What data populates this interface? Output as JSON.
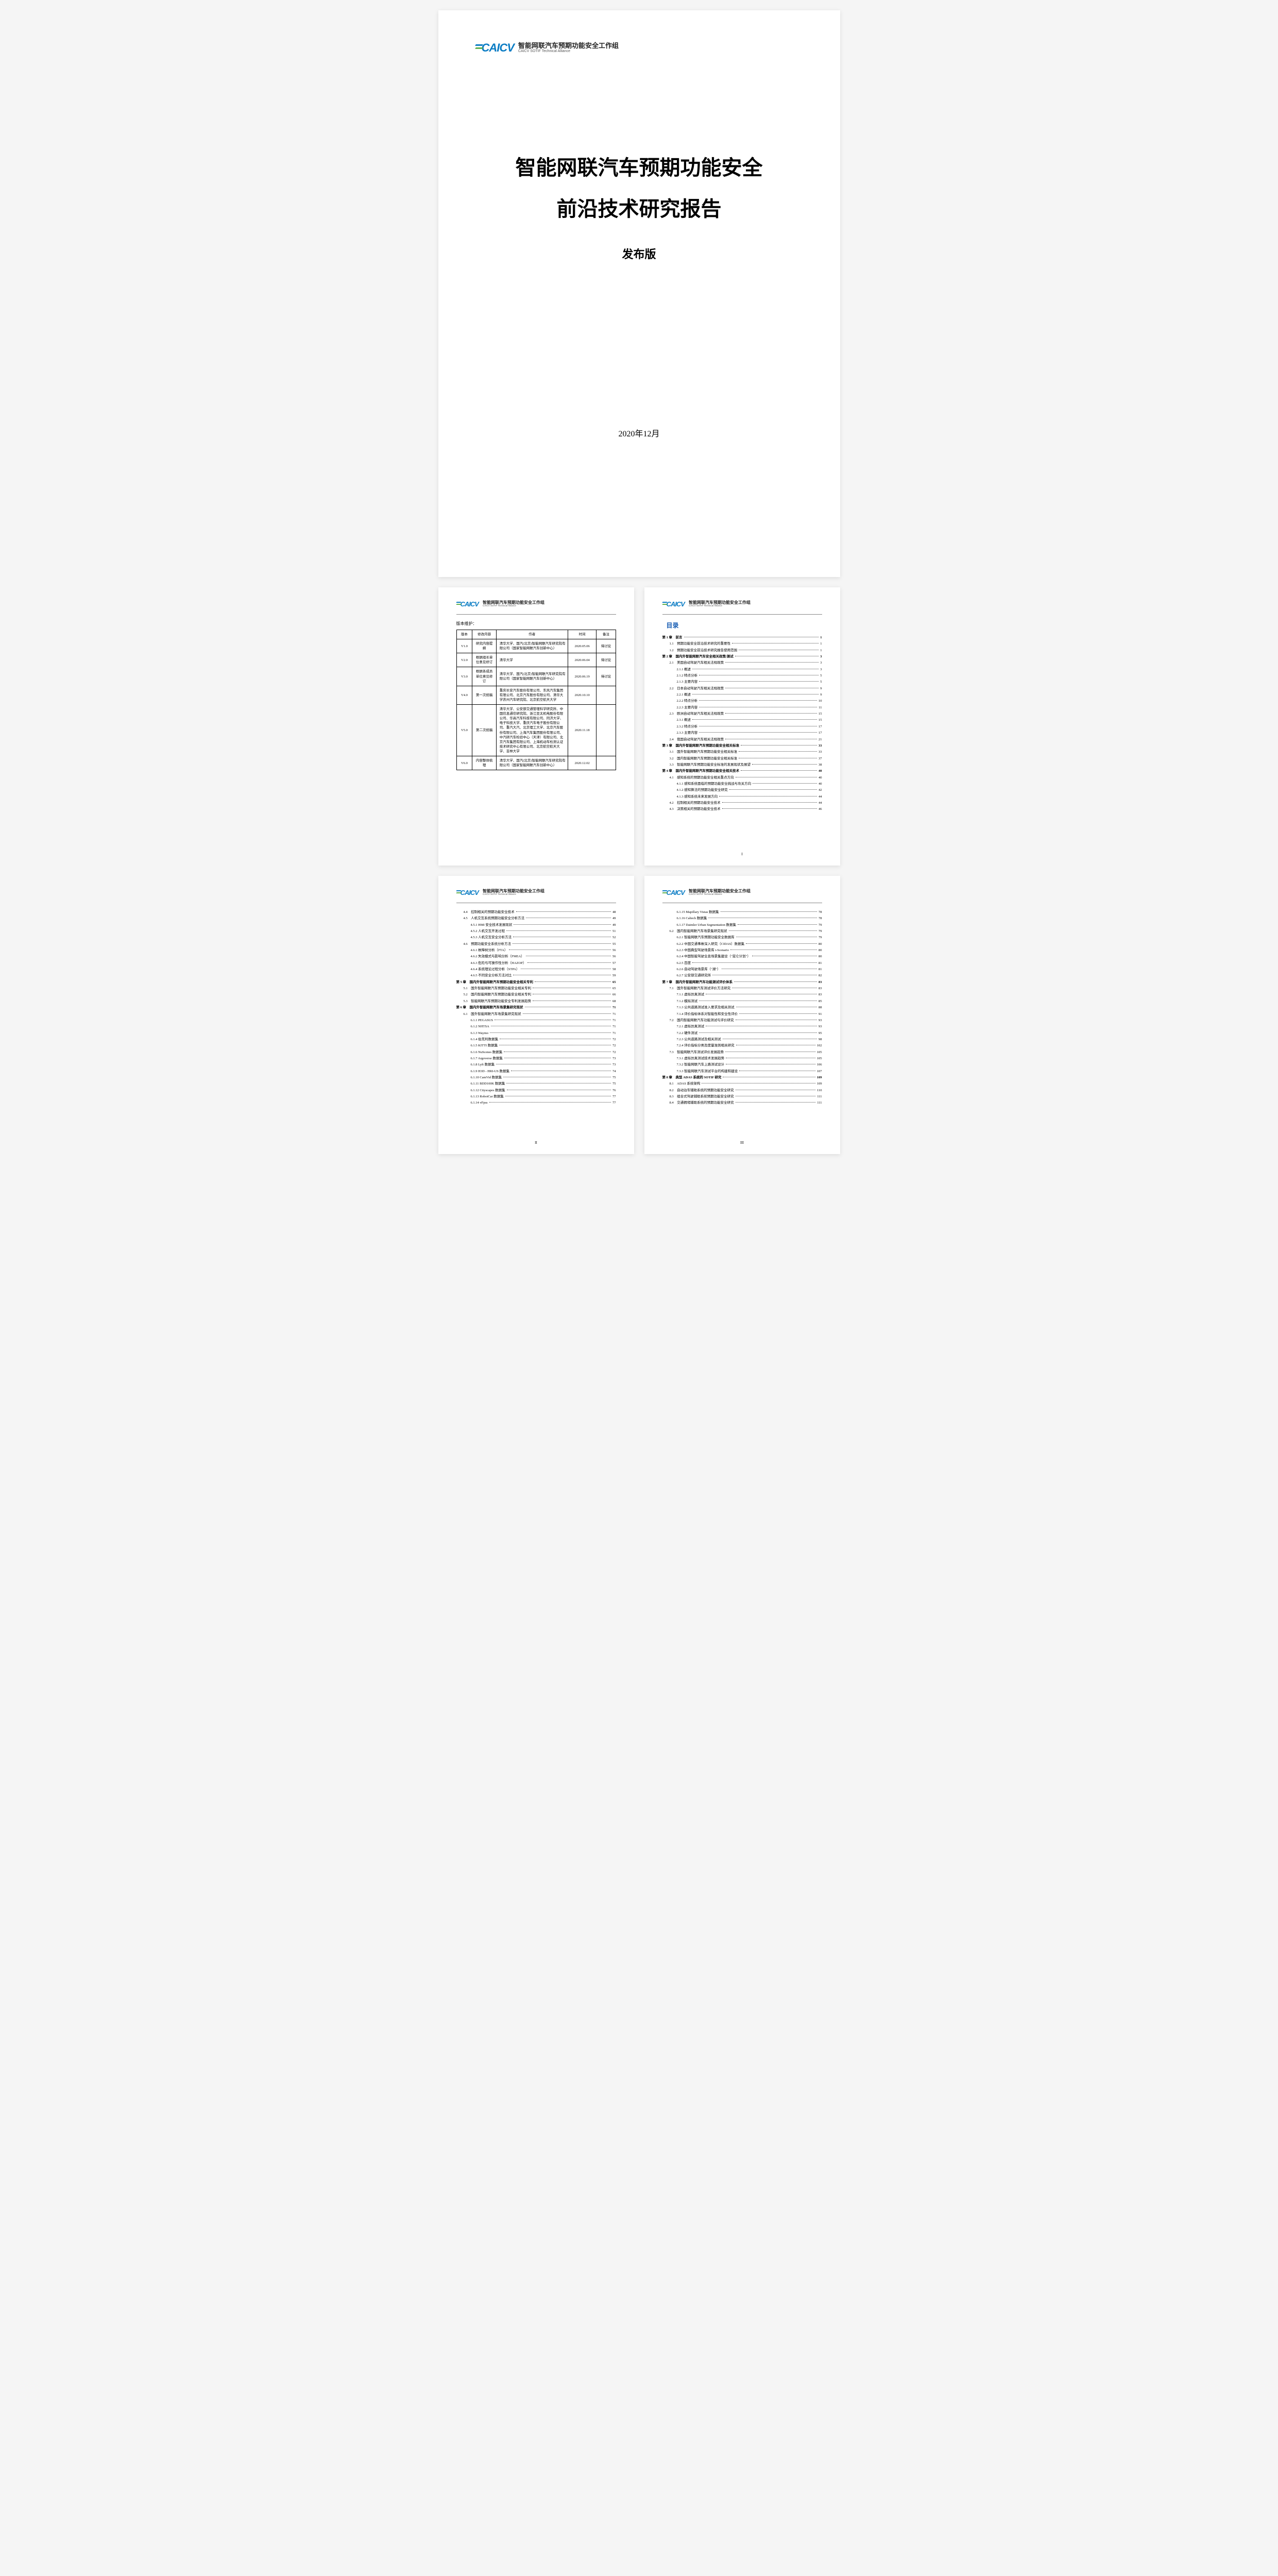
{
  "logo": {
    "mark": "CAICV",
    "cn": "智能网联汽车预期功能安全工作组",
    "en": "CAICV SOTIF Technical Alliance"
  },
  "cover": {
    "title_line1": "智能网联汽车预期功能安全",
    "title_line2": "前沿技术研究报告",
    "edition": "发布版",
    "date": "2020年12月"
  },
  "version": {
    "label": "版本维护：",
    "headers": [
      "版本",
      "修改内容",
      "作者",
      "时间",
      "备注"
    ],
    "rows": [
      {
        "v": "V1.0",
        "c": "研究内容提纲",
        "a": "清华大学、国汽(北京)智能网联汽车研究院有限公司（国家智能网联汽车创新中心）",
        "t": "2020.05.06",
        "n": "待讨论"
      },
      {
        "v": "V2.0",
        "c": "根据组长单位意见修订",
        "a": "清华大学",
        "t": "2020.06.04",
        "n": "待讨论"
      },
      {
        "v": "V3.0",
        "c": "根据各成员单位意见修订",
        "a": "清华大学、国汽(北京)智能网联汽车研究院有限公司（国家智能网联汽车创新中心）",
        "t": "2020.06.19",
        "n": "待讨论"
      },
      {
        "v": "V4.0",
        "c": "第一次统稿",
        "a": "重庆长安汽车股份有限公司、东风汽车集团有限公司、北京汽车股份有限公司、清华大学苏州汽车研究院、北京航空航天大学",
        "t": "2020.10.10",
        "n": ""
      },
      {
        "v": "V5.0",
        "c": "第二次统稿",
        "a": "清华大学、公安部交通管理科学研究所、中国信息通信研究院、浙江亚太机电股份有限公司、华高汽车科技有限公司、同济大学、电子科技大学、重庆汽车电子股份有限公司、重汽大汽、北京理工大学、北京汽车股份有限公司、上海汽车集团股份有限公司、中汽研汽车检验中心（天津）有限公司、北京汽车集团有限公司、上海机动车检测认证技术研究中心有限公司、北京航空航天大学、吉林大学",
        "t": "2020.11.18",
        "n": ""
      },
      {
        "v": "V6.0",
        "c": "内容整体梳理",
        "a": "清华大学、国汽(北京)智能网联汽车研究院有限公司（国家智能网联汽车创新中心）",
        "t": "2020.12.02",
        "n": ""
      }
    ]
  },
  "toc_title": "目录",
  "toc_p1": [
    {
      "l": 1,
      "t": "第 1 章　前言",
      "p": "1"
    },
    {
      "l": 2,
      "t": "1.1　预期功能安全前沿技术研究的重要性",
      "p": "1"
    },
    {
      "l": 2,
      "t": "1.2　预期功能安全前沿技术研究报告使用范围",
      "p": "1"
    },
    {
      "l": 1,
      "t": "第 2 章　国内外智能网联汽车安全相关政策/测试",
      "p": "3"
    },
    {
      "l": 2,
      "t": "2.1　美国自动驾驶汽车相关法规政策",
      "p": "3"
    },
    {
      "l": 3,
      "t": "2.1.1 概述",
      "p": "3"
    },
    {
      "l": 3,
      "t": "2.1.2 特点分析",
      "p": "5"
    },
    {
      "l": 3,
      "t": "2.1.3 主要内容",
      "p": "5"
    },
    {
      "l": 2,
      "t": "2.2　日本自动驾驶汽车相关法规政策",
      "p": "9"
    },
    {
      "l": 3,
      "t": "2.2.1 概述",
      "p": "9"
    },
    {
      "l": 3,
      "t": "2.2.2 特点分析",
      "p": "10"
    },
    {
      "l": 3,
      "t": "2.2.3 主要内容",
      "p": "11"
    },
    {
      "l": 2,
      "t": "2.3　欧洲自动驾驶汽车相关法规政策",
      "p": "15"
    },
    {
      "l": 3,
      "t": "2.3.1 概述",
      "p": "15"
    },
    {
      "l": 3,
      "t": "2.3.2 特点分析",
      "p": "17"
    },
    {
      "l": 3,
      "t": "2.3.3 主要内容",
      "p": "17"
    },
    {
      "l": 2,
      "t": "2.4　我国自动驾驶汽车相关法规政策",
      "p": "21"
    },
    {
      "l": 1,
      "t": "第 3 章　国内外智能网联汽车预期功能安全相关标准",
      "p": "33"
    },
    {
      "l": 2,
      "t": "3.1　国外智能网联汽车预期功能安全相关标准",
      "p": "33"
    },
    {
      "l": 2,
      "t": "3.2　国内智能网联汽车预期功能安全相关标准",
      "p": "37"
    },
    {
      "l": 2,
      "t": "3.3　智能网联汽车预期功能安全标准的发展现状及展望",
      "p": "38"
    },
    {
      "l": 1,
      "t": "第 4 章　国内外智能网联汽车预期功能安全相关技术",
      "p": "40"
    },
    {
      "l": 2,
      "t": "4.1　感知系统的预期功能安全相关重点方向",
      "p": "40"
    },
    {
      "l": 3,
      "t": "4.1.1 感知系统面临的预期功能安全挑战与攻关方向",
      "p": "40"
    },
    {
      "l": 3,
      "t": "4.1.2 感知算法的预期功能安全研究",
      "p": "42"
    },
    {
      "l": 3,
      "t": "4.1.3 感知系统未来发展方向",
      "p": "44"
    },
    {
      "l": 2,
      "t": "4.2　控制相关的预期功能安全技术",
      "p": "44"
    },
    {
      "l": 2,
      "t": "4.3　决策相关的预期功能安全技术",
      "p": "46"
    }
  ],
  "toc_p2": [
    {
      "l": 2,
      "t": "4.4　控制相关的预期功能安全技术",
      "p": "48"
    },
    {
      "l": 2,
      "t": "4.5　人机交互系统预期功能安全分析方法",
      "p": "49"
    },
    {
      "l": 3,
      "t": "4.5.1 HMI 安全技术发展现状",
      "p": "49"
    },
    {
      "l": 3,
      "t": "4.5.2 人机交互开发过程",
      "p": "51"
    },
    {
      "l": 3,
      "t": "4.5.3 人机交互安全分析方法",
      "p": "52"
    },
    {
      "l": 2,
      "t": "4.6　预期功能安全系统分析方法",
      "p": "55"
    },
    {
      "l": 3,
      "t": "4.6.1 故障树分析（FTA）",
      "p": "56"
    },
    {
      "l": 3,
      "t": "4.6.2 失效模式与影响分析（FMEA）",
      "p": "56"
    },
    {
      "l": 3,
      "t": "4.6.3 危险与可操作性分析（HAZOP）",
      "p": "57"
    },
    {
      "l": 3,
      "t": "4.6.4 系统理论过程分析（STPA）",
      "p": "58"
    },
    {
      "l": 3,
      "t": "4.6.5 不同安全分析方法对比",
      "p": "59"
    },
    {
      "l": 1,
      "t": "第 5 章　国内外智能网联汽车预期功能安全相关专利",
      "p": "65"
    },
    {
      "l": 2,
      "t": "5.1　国外智能网联汽车预期功能安全相关专利",
      "p": "65"
    },
    {
      "l": 2,
      "t": "5.2　国内智能网联汽车预期功能安全相关专利",
      "p": "66"
    },
    {
      "l": 2,
      "t": "5.3　智能网联汽车预期功能安全专利发展趋势",
      "p": "68"
    },
    {
      "l": 1,
      "t": "第 6 章　国内外智能网联汽车场景集研究现状",
      "p": "71"
    },
    {
      "l": 2,
      "t": "6.1　国外智能网联汽车场景集研究现状",
      "p": "71"
    },
    {
      "l": 3,
      "t": "6.1.1 PEGASUS",
      "p": "71"
    },
    {
      "l": 3,
      "t": "6.1.2 NHTSA",
      "p": "71"
    },
    {
      "l": 3,
      "t": "6.1.3 Waymo",
      "p": "71"
    },
    {
      "l": 3,
      "t": "6.1.4 伯克利数据集",
      "p": "72"
    },
    {
      "l": 3,
      "t": "6.1.5 KITTI 数据集",
      "p": "72"
    },
    {
      "l": 3,
      "t": "6.1.6 NuScenes 数据集",
      "p": "72"
    },
    {
      "l": 3,
      "t": "6.1.7 Argoverse 数据集",
      "p": "73"
    },
    {
      "l": 3,
      "t": "6.1.8 Lyft 数据集",
      "p": "73"
    },
    {
      "l": 3,
      "t": "6.1.9 H3D - HRI-US 数据集",
      "p": "74"
    },
    {
      "l": 3,
      "t": "6.1.10 CamVid 数据集",
      "p": "75"
    },
    {
      "l": 3,
      "t": "6.1.11 BDD100K 数据集",
      "p": "75"
    },
    {
      "l": 3,
      "t": "6.1.12 Cityscapes 数据集",
      "p": "76"
    },
    {
      "l": 3,
      "t": "6.1.13 RobotCar 数据集",
      "p": "77"
    },
    {
      "l": 3,
      "t": "6.1.14 vFpss",
      "p": "77"
    }
  ],
  "toc_p3": [
    {
      "l": 3,
      "t": "6.1.15 Mapillary Vistas 数据集",
      "p": "78"
    },
    {
      "l": 3,
      "t": "6.1.16 Caltech 数据集",
      "p": "78"
    },
    {
      "l": 3,
      "t": "6.1.17 Daimler Urban Segmentation 数据集",
      "p": "79"
    },
    {
      "l": 2,
      "t": "6.2　国内智能网联汽车场景集研究现状",
      "p": "79"
    },
    {
      "l": 3,
      "t": "6.2.1 智能网联汽车预期功能安全数据库",
      "p": "79"
    },
    {
      "l": 3,
      "t": "6.2.2 中国交通事故深入研究（CIDAS）数据集",
      "p": "80"
    },
    {
      "l": 3,
      "t": "6.2.3 中国典型驾驶场景库 i-Scenario",
      "p": "80"
    },
    {
      "l": 3,
      "t": "6.2.4 中国智能驾驶全息场景集建设（\"昆仑计划\"）",
      "p": "80"
    },
    {
      "l": 3,
      "t": "6.2.5 百度",
      "p": "81"
    },
    {
      "l": 3,
      "t": "6.2.6 自动驾驶场景库（\"湖\"）",
      "p": "81"
    },
    {
      "l": 3,
      "t": "6.2.7 公安部交通研究所",
      "p": "82"
    },
    {
      "l": 1,
      "t": "第 7 章　国内外智能网联汽车功能测试评价体系",
      "p": "83"
    },
    {
      "l": 2,
      "t": "7.1　国外智能网联汽车测试评价方法研究",
      "p": "83"
    },
    {
      "l": 3,
      "t": "7.1.1 虚拟仿真测试",
      "p": "83"
    },
    {
      "l": 3,
      "t": "7.1.2 模拟测试",
      "p": "85"
    },
    {
      "l": 3,
      "t": "7.1.3 公共道路测试准入要求及相关测试",
      "p": "88"
    },
    {
      "l": 3,
      "t": "7.1.4 评价指标体系对智能性和安全性评价",
      "p": "91"
    },
    {
      "l": 2,
      "t": "7.2　国内智能网联汽车功能测试与评价研究",
      "p": "93"
    },
    {
      "l": 3,
      "t": "7.2.1 虚拟仿真测试",
      "p": "93"
    },
    {
      "l": 3,
      "t": "7.2.2 硬件测试",
      "p": "95"
    },
    {
      "l": 3,
      "t": "7.2.3 公共道路测试及相关测试",
      "p": "98"
    },
    {
      "l": 3,
      "t": "7.2.4 评价指标分类及度量准则相关研究",
      "p": "102"
    },
    {
      "l": 2,
      "t": "7.3　智能网联汽车测试评价发展趋势",
      "p": "105"
    },
    {
      "l": 3,
      "t": "7.3.1 虚拟仿真测试技术发展趋势",
      "p": "105"
    },
    {
      "l": 3,
      "t": "7.3.2 智能网联汽车上路测试设计",
      "p": "106"
    },
    {
      "l": 3,
      "t": "7.3.3 智能网联汽车测试平台的构建和建设",
      "p": "107"
    },
    {
      "l": 1,
      "t": "第 8 章　典型 ADAS 系统的 SOTIF 研究",
      "p": "109"
    },
    {
      "l": 2,
      "t": "8.1　ADAS 系统架构",
      "p": "109"
    },
    {
      "l": 2,
      "t": "8.2　自动泊车辅助系统的预期功能安全研究",
      "p": "110"
    },
    {
      "l": 2,
      "t": "8.3　组合式驾驶辅助系统预期功能安全研究",
      "p": "111"
    },
    {
      "l": 2,
      "t": "8.4　交通拥堵辅助系统的预期功能安全研究",
      "p": "111"
    }
  ],
  "page_numbers": {
    "p2": "I",
    "p3": "II",
    "p4": "III"
  }
}
